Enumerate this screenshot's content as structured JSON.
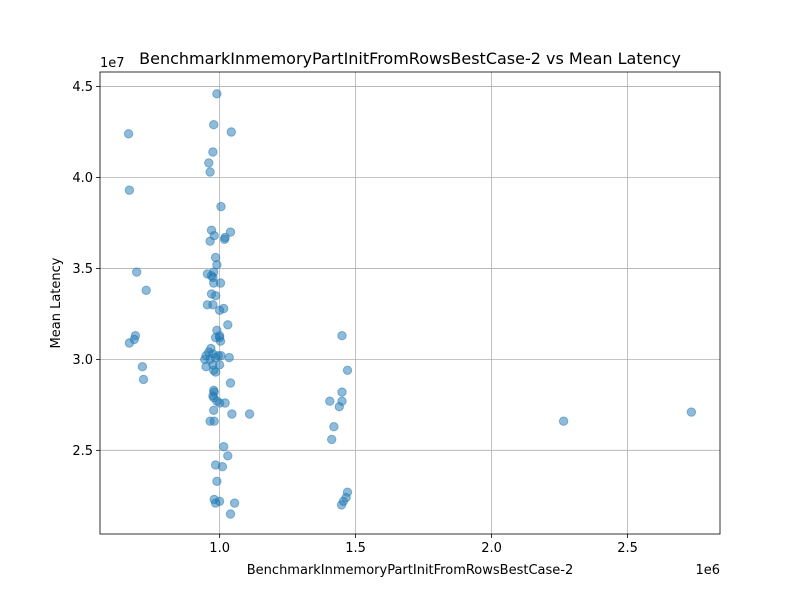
{
  "chart_data": {
    "type": "scatter",
    "title": "BenchmarkInmemoryPartInitFromRowsBestCase-2 vs Mean Latency",
    "xlabel": "BenchmarkInmemoryPartInitFromRowsBestCase-2",
    "ylabel": "Mean Latency",
    "x_offset_label": "1e6",
    "y_offset_label": "1e7",
    "xlim": [
      560000,
      2840000
    ],
    "ylim": [
      20400000,
      45800000
    ],
    "x_ticks": [
      1000000,
      1500000,
      2000000,
      2500000
    ],
    "x_tick_labels": [
      "1.0",
      "1.5",
      "2.0",
      "2.5"
    ],
    "y_ticks": [
      25000000,
      30000000,
      35000000,
      40000000,
      45000000
    ],
    "y_tick_labels": [
      "2.5",
      "3.0",
      "3.5",
      "4.0",
      "4.5"
    ],
    "grid": true,
    "series_color": "#1f77b4",
    "points": [
      [
        665000,
        42400000
      ],
      [
        668000,
        39300000
      ],
      [
        668000,
        30900000
      ],
      [
        686000,
        31100000
      ],
      [
        690000,
        31300000
      ],
      [
        695000,
        34800000
      ],
      [
        716000,
        29600000
      ],
      [
        720000,
        28900000
      ],
      [
        730000,
        33800000
      ],
      [
        990000,
        44600000
      ],
      [
        978000,
        42900000
      ],
      [
        1043000,
        42500000
      ],
      [
        975000,
        41400000
      ],
      [
        960000,
        40800000
      ],
      [
        965000,
        40300000
      ],
      [
        1005000,
        38400000
      ],
      [
        970000,
        37100000
      ],
      [
        980000,
        36800000
      ],
      [
        965000,
        36500000
      ],
      [
        1040000,
        37000000
      ],
      [
        1018000,
        36600000
      ],
      [
        1020000,
        36700000
      ],
      [
        985000,
        35600000
      ],
      [
        990000,
        35200000
      ],
      [
        955000,
        34700000
      ],
      [
        970000,
        34600000
      ],
      [
        978000,
        34800000
      ],
      [
        975000,
        34500000
      ],
      [
        978000,
        34200000
      ],
      [
        1003000,
        34200000
      ],
      [
        970000,
        33600000
      ],
      [
        985000,
        33500000
      ],
      [
        955000,
        33000000
      ],
      [
        975000,
        33000000
      ],
      [
        1015000,
        32800000
      ],
      [
        1000000,
        32700000
      ],
      [
        1030000,
        31900000
      ],
      [
        990000,
        31600000
      ],
      [
        985000,
        31200000
      ],
      [
        1000000,
        31200000
      ],
      [
        1003000,
        31000000
      ],
      [
        1000000,
        31300000
      ],
      [
        968000,
        30600000
      ],
      [
        960000,
        30400000
      ],
      [
        950000,
        30200000
      ],
      [
        975000,
        30300000
      ],
      [
        985000,
        30100000
      ],
      [
        995000,
        30200000
      ],
      [
        1005000,
        30200000
      ],
      [
        1035000,
        30100000
      ],
      [
        945000,
        30000000
      ],
      [
        965000,
        30000000
      ],
      [
        975000,
        29700000
      ],
      [
        950000,
        29600000
      ],
      [
        978000,
        29400000
      ],
      [
        985000,
        29300000
      ],
      [
        1000000,
        29700000
      ],
      [
        1040000,
        28700000
      ],
      [
        978000,
        28300000
      ],
      [
        980000,
        28200000
      ],
      [
        975000,
        28000000
      ],
      [
        978000,
        27900000
      ],
      [
        990000,
        27700000
      ],
      [
        1000000,
        27600000
      ],
      [
        1020000,
        27600000
      ],
      [
        978000,
        27200000
      ],
      [
        1045000,
        27000000
      ],
      [
        1110000,
        27000000
      ],
      [
        965000,
        26600000
      ],
      [
        980000,
        26600000
      ],
      [
        1015000,
        25200000
      ],
      [
        1030000,
        24700000
      ],
      [
        985000,
        24200000
      ],
      [
        1010000,
        24100000
      ],
      [
        990000,
        23300000
      ],
      [
        980000,
        22300000
      ],
      [
        985000,
        22100000
      ],
      [
        1000000,
        22200000
      ],
      [
        1055000,
        22100000
      ],
      [
        1040000,
        21500000
      ],
      [
        1450000,
        31300000
      ],
      [
        1470000,
        29400000
      ],
      [
        1450000,
        28200000
      ],
      [
        1405000,
        27700000
      ],
      [
        1450000,
        27700000
      ],
      [
        1440000,
        27400000
      ],
      [
        1420000,
        26300000
      ],
      [
        1412000,
        25600000
      ],
      [
        1470000,
        22700000
      ],
      [
        1465000,
        22400000
      ],
      [
        1455000,
        22200000
      ],
      [
        1448000,
        22000000
      ],
      [
        2265000,
        26600000
      ],
      [
        2735000,
        27100000
      ]
    ]
  }
}
